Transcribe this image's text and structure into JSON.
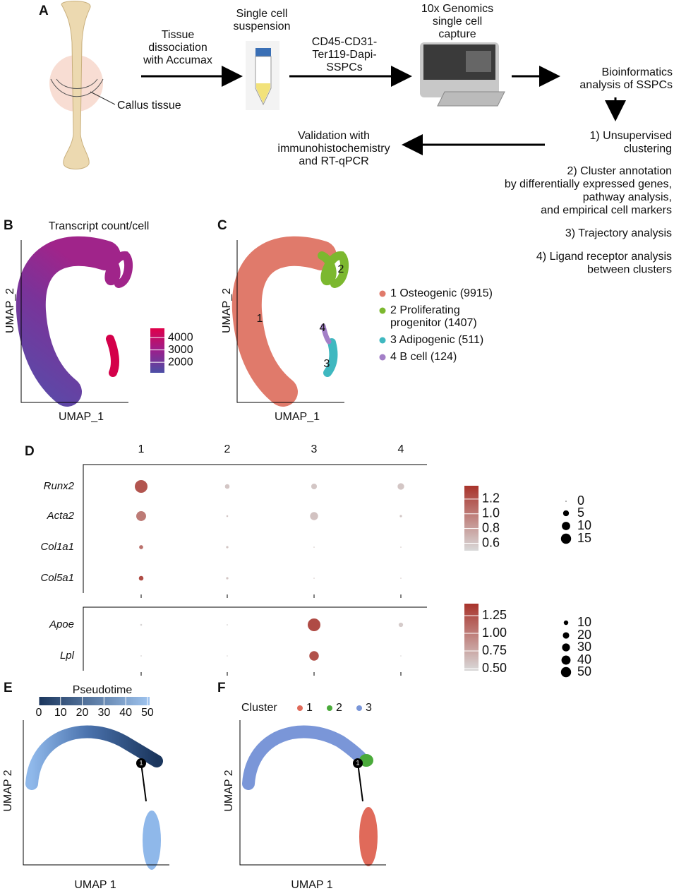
{
  "panels": {
    "A": {
      "label": "A",
      "tissue": [
        "Tissue",
        "dissociation",
        "with Accumax"
      ],
      "callus": "Callus tissue",
      "suspension": [
        "Single cell",
        "suspension"
      ],
      "markers": [
        "CD45-CD31-",
        "Ter119-Dapi-",
        "SSPCs"
      ],
      "capture": [
        "10x Genomics",
        "single cell",
        "capture"
      ],
      "bioinformatics": [
        "Bioinformatics",
        "analysis of SSPCs"
      ],
      "steps": [
        [
          "1) Unsupervised",
          "clustering"
        ],
        [
          "2) Cluster annotation",
          "by differentially expressed genes,",
          "pathway analysis,",
          "and empirical cell markers"
        ],
        [
          "3) Trajectory analysis"
        ],
        [
          "4) Ligand receptor analysis",
          "between clusters"
        ]
      ],
      "validation": [
        "Validation with",
        "immunohistochemistry",
        "and RT-qPCR"
      ]
    },
    "B": {
      "label": "B",
      "title": "Transcript count/cell",
      "xlabel": "UMAP_1",
      "ylabel": "UMAP_2",
      "color_lim": [
        1150,
        4750
      ],
      "color_ticks": [
        4000,
        3000,
        2000
      ],
      "colors": [
        "#4b4fa6",
        "#9a1f8c",
        "#e0004a"
      ]
    },
    "C": {
      "label": "C",
      "xlabel": "UMAP_1",
      "ylabel": "UMAP_2",
      "clusters": [
        {
          "id": "1",
          "lines": [
            "1 Osteogenic (9915)"
          ],
          "color": "#e07a6b"
        },
        {
          "id": "2",
          "lines": [
            "2 Proliferating",
            "progenitor (1407)"
          ],
          "color": "#7cb82f"
        },
        {
          "id": "3",
          "lines": [
            "3 Adipogenic (511)"
          ],
          "color": "#3fb8c0"
        },
        {
          "id": "4",
          "lines": [
            "4 B cell (124)"
          ],
          "color": "#a37fc7"
        }
      ]
    },
    "D": {
      "label": "D",
      "columns": [
        "1",
        "2",
        "3",
        "4"
      ],
      "low_color": "#d9d9d9",
      "high_color": "#a8332b",
      "groups": [
        {
          "genes": [
            "Runx2",
            "Acta2",
            "Col1a1",
            "Col5a1"
          ],
          "size": [
            [
              15,
              2,
              3,
              4
            ],
            [
              9,
              0.3,
              6,
              0.5
            ],
            [
              1.5,
              0.5,
              0.1,
              0.1
            ],
            [
              2,
              0.5,
              0.1,
              0.1
            ]
          ],
          "expression": [
            [
              1.2,
              0.6,
              0.6,
              0.6
            ],
            [
              1.0,
              0.6,
              0.62,
              0.6
            ],
            [
              1.05,
              0.6,
              0.6,
              0.6
            ],
            [
              1.25,
              0.6,
              0.6,
              0.6
            ]
          ],
          "color_lim": [
            0.5,
            1.38
          ],
          "color_ticks": [
            1.2,
            {
              "value": 1,
              "label": "1.0"
            },
            0.8,
            0.6
          ],
          "size_ticks": [
            0,
            5,
            10,
            15
          ]
        },
        {
          "genes": [
            "Apoe",
            "Lpl"
          ],
          "size": [
            [
              1,
              0.5,
              50,
              6
            ],
            [
              0.5,
              0.3,
              28,
              0.3
            ]
          ],
          "expression": [
            [
              0.5,
              0.5,
              1.28,
              0.55
            ],
            [
              0.5,
              0.5,
              1.25,
              0.5
            ]
          ],
          "color_lim": [
            0.47,
            1.42
          ],
          "color_ticks": [
            1.25,
            {
              "value": 1,
              "label": "1.00"
            },
            0.75,
            {
              "value": 0.5,
              "label": "0.50"
            }
          ],
          "size_ticks": [
            10,
            20,
            30,
            40,
            50
          ]
        }
      ]
    },
    "E": {
      "label": "E",
      "legend_title": "Pseudotime",
      "color_lim": [
        0,
        51
      ],
      "color_ticks": [
        0,
        10,
        20,
        30,
        40,
        50
      ],
      "colors": [
        "#1b365d",
        "#9fc4ef"
      ],
      "node": "1",
      "xlabel": "UMAP 1",
      "ylabel": "UMAP 2"
    },
    "F": {
      "label": "F",
      "legend_title": "Cluster",
      "node": "1",
      "xlabel": "UMAP 1",
      "ylabel": "UMAP 2",
      "clusters": [
        {
          "name": "1",
          "color": "#e06a5a"
        },
        {
          "name": "2",
          "color": "#4aaa3a"
        },
        {
          "name": "3",
          "color": "#7a96d8"
        }
      ]
    }
  }
}
